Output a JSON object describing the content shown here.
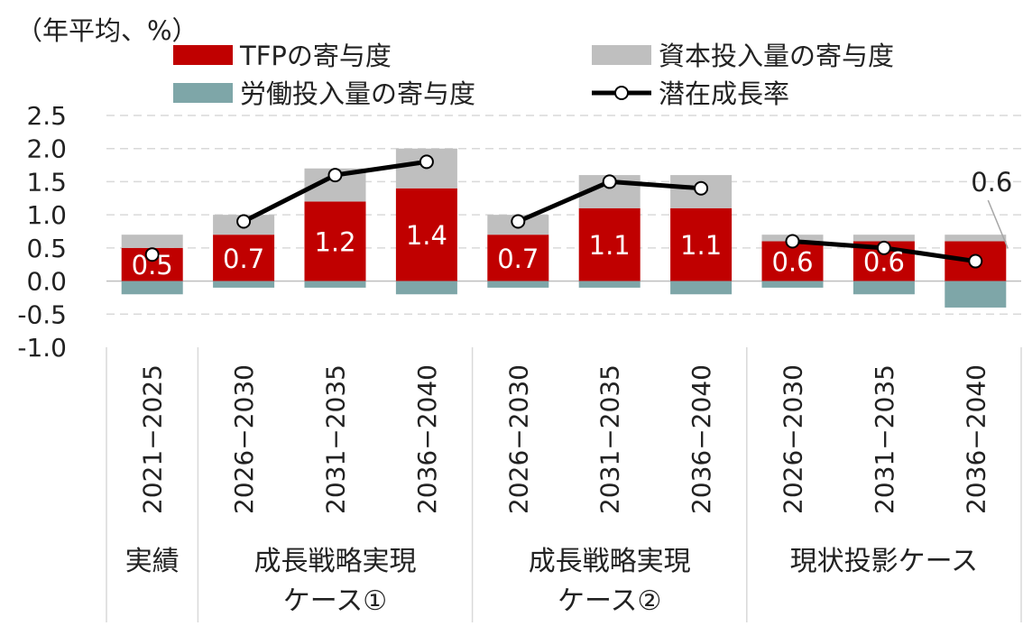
{
  "chart_data": {
    "type": "bar",
    "unit_label": "（年平均、%）",
    "ylim": [
      -1.0,
      2.5
    ],
    "yticks": [
      "2.5",
      "2.0",
      "1.5",
      "1.0",
      "0.5",
      "0.0",
      "-0.5",
      "-1.0"
    ],
    "ytick_values": [
      2.5,
      2.0,
      1.5,
      1.0,
      0.5,
      0.0,
      -0.5,
      -1.0
    ],
    "grid": true,
    "legend_position": "top",
    "categories": [
      "2021−2025",
      "2026−2030",
      "2031−2035",
      "2036−2040",
      "2026−2030",
      "2031−2035",
      "2036−2040",
      "2026−2030",
      "2031−2035",
      "2036−2040"
    ],
    "groups": [
      {
        "label": "実績",
        "label_line2": "",
        "count": 1
      },
      {
        "label": "成長戦略実現",
        "label_line2": "ケース①",
        "count": 3
      },
      {
        "label": "成長戦略実現",
        "label_line2": "ケース②",
        "count": 3
      },
      {
        "label": "現状投影ケース",
        "label_line2": "",
        "count": 3
      }
    ],
    "series": [
      {
        "name": "TFPの寄与度",
        "kind": "bar",
        "color": "#c00000",
        "values": [
          0.5,
          0.7,
          1.2,
          1.4,
          0.7,
          1.1,
          1.1,
          0.6,
          0.6,
          0.6
        ]
      },
      {
        "name": "資本投入量の寄与度",
        "kind": "bar",
        "color": "#bfbfbf",
        "values": [
          0.2,
          0.3,
          0.5,
          0.6,
          0.3,
          0.5,
          0.5,
          0.1,
          0.1,
          0.1
        ]
      },
      {
        "name": "労働投入量の寄与度",
        "kind": "bar",
        "color": "#7ea6a8",
        "values": [
          -0.2,
          -0.1,
          -0.1,
          -0.2,
          -0.1,
          -0.1,
          -0.2,
          -0.1,
          -0.2,
          -0.4
        ]
      },
      {
        "name": "潜在成長率",
        "kind": "line",
        "color": "#000000",
        "values": [
          0.4,
          0.9,
          1.6,
          1.8,
          0.9,
          1.5,
          1.4,
          0.6,
          0.5,
          0.3
        ]
      }
    ],
    "bar_labels": [
      "0.5",
      "0.7",
      "1.2",
      "1.4",
      "0.7",
      "1.1",
      "1.1",
      "0.6",
      "0.6",
      ""
    ],
    "callout": {
      "text": "0.6",
      "index": 9
    }
  }
}
